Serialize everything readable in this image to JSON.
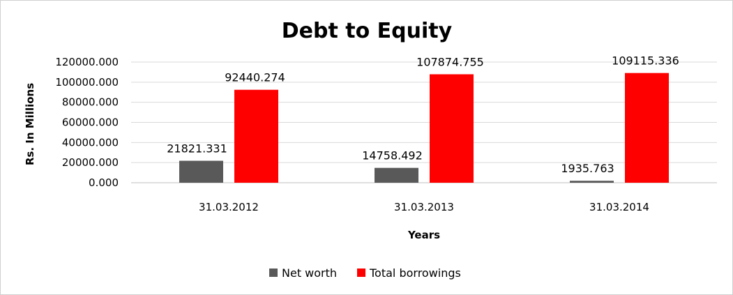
{
  "chart_data": {
    "type": "bar",
    "title": "Debt to Equity",
    "xlabel": "Years",
    "ylabel": "Rs. In Millions",
    "categories": [
      "31.03.2012",
      "31.03.2013",
      "31.03.2014"
    ],
    "series": [
      {
        "name": "Net worth",
        "values": [
          21821.331,
          14758.492,
          1935.763
        ],
        "color": "#595959"
      },
      {
        "name": "Total borrowings",
        "values": [
          92440.274,
          107874.755,
          109115.336
        ],
        "color": "#ff0000"
      }
    ],
    "data_labels": [
      [
        "21821.331",
        "14758.492",
        "1935.763"
      ],
      [
        "92440.274",
        "107874.755",
        "109115.336"
      ]
    ],
    "ylim": [
      0,
      120000
    ],
    "yticks": [
      0,
      20000,
      40000,
      60000,
      80000,
      100000,
      120000
    ],
    "ytick_labels": [
      "0.000",
      "20000.000",
      "40000.000",
      "60000.000",
      "80000.000",
      "100000.000",
      "120000.000"
    ],
    "grid": true,
    "legend_position": "bottom"
  }
}
